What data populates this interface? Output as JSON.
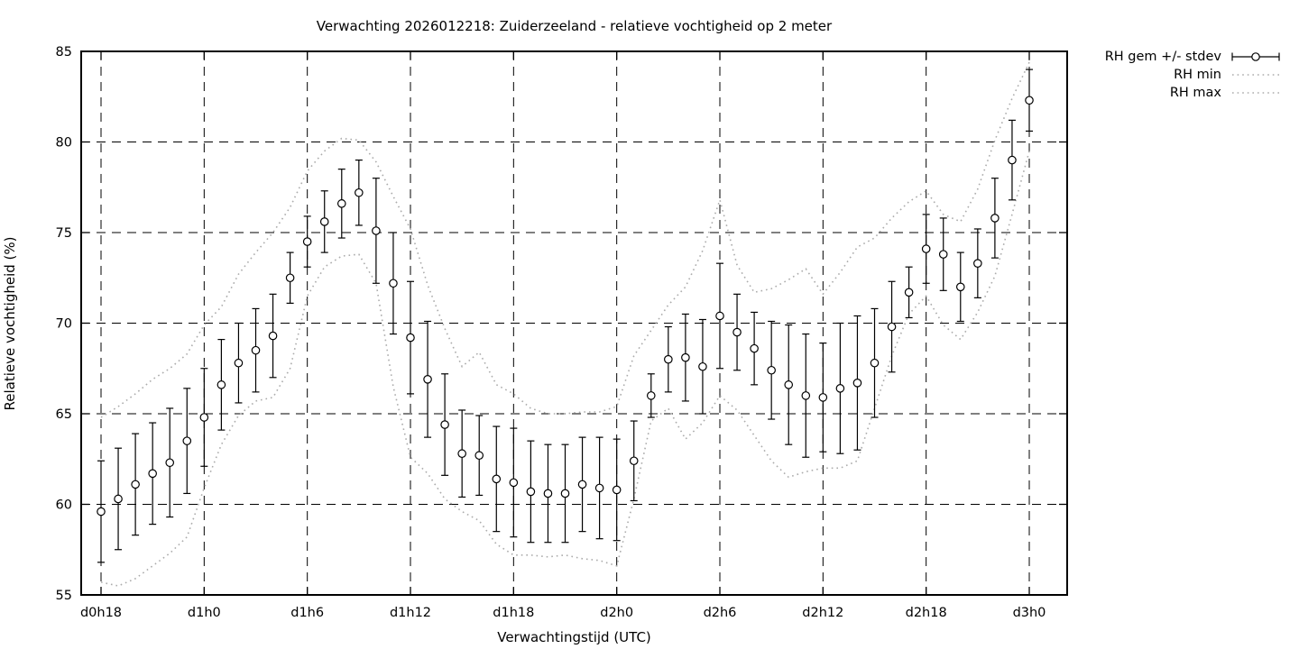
{
  "chart_data": {
    "type": "line-errorbar",
    "title": "Verwachting 2026012218: Zuiderzeeland - relatieve vochtigheid op 2 meter",
    "xlabel": "Verwachtingstijd (UTC)",
    "ylabel": "Relatieve vochtigheid (%)",
    "ylim": [
      55,
      85
    ],
    "yticks": [
      55,
      60,
      65,
      70,
      75,
      80,
      85
    ],
    "grid": "dashed both directions",
    "legend_position": "outside top right",
    "x_hours_span": 54,
    "xticks": [
      {
        "index": 0,
        "label": "d0h18"
      },
      {
        "index": 6,
        "label": "d1h0"
      },
      {
        "index": 12,
        "label": "d1h6"
      },
      {
        "index": 18,
        "label": "d1h12"
      },
      {
        "index": 24,
        "label": "d1h18"
      },
      {
        "index": 30,
        "label": "d2h0"
      },
      {
        "index": 36,
        "label": "d2h6"
      },
      {
        "index": 42,
        "label": "d2h12"
      },
      {
        "index": 48,
        "label": "d2h18"
      },
      {
        "index": 54,
        "label": "d3h0"
      }
    ],
    "legend": [
      {
        "label": "RH gem +/- stdev",
        "sample": "errorbar"
      },
      {
        "label": "RH min",
        "sample": "dotted"
      },
      {
        "label": "RH max",
        "sample": "dotted"
      }
    ],
    "colors": {
      "mean_series": "#000000",
      "minmax_series": "#ababab",
      "grid": "#000000",
      "background": "#ffffff",
      "text": "#000000"
    },
    "series": {
      "rh_mean": [
        59.6,
        60.3,
        61.1,
        61.7,
        62.3,
        63.5,
        64.8,
        66.6,
        67.8,
        68.5,
        69.3,
        72.5,
        74.5,
        75.6,
        76.6,
        77.2,
        75.1,
        72.2,
        69.2,
        66.9,
        64.4,
        62.8,
        62.7,
        61.4,
        61.2,
        60.7,
        60.6,
        60.6,
        61.1,
        60.9,
        60.8,
        62.4,
        66.0,
        68.0,
        68.1,
        67.6,
        70.4,
        69.5,
        68.6,
        67.4,
        66.6,
        66.0,
        65.9,
        66.4,
        66.7,
        67.8,
        69.8,
        71.7,
        74.1,
        73.8,
        72.0,
        73.3,
        75.8,
        79.0,
        82.3
      ],
      "rh_stdev": [
        2.8,
        2.8,
        2.8,
        2.8,
        3.0,
        2.9,
        2.7,
        2.5,
        2.2,
        2.3,
        2.3,
        1.4,
        1.4,
        1.7,
        1.9,
        1.8,
        2.9,
        2.8,
        3.1,
        3.2,
        2.8,
        2.4,
        2.2,
        2.9,
        3.0,
        2.8,
        2.7,
        2.7,
        2.6,
        2.8,
        2.8,
        2.2,
        1.2,
        1.8,
        2.4,
        2.6,
        2.9,
        2.1,
        2.0,
        2.7,
        3.3,
        3.4,
        3.0,
        3.6,
        3.7,
        3.0,
        2.5,
        1.4,
        1.9,
        2.0,
        1.9,
        1.9,
        2.2,
        2.2,
        1.7
      ],
      "rh_min": [
        55.7,
        55.5,
        55.9,
        56.6,
        57.3,
        58.2,
        60.9,
        63.3,
        64.9,
        65.7,
        65.9,
        67.5,
        71.5,
        73.1,
        73.7,
        73.8,
        72.2,
        66.5,
        62.6,
        61.7,
        60.3,
        59.6,
        59.1,
        57.8,
        57.2,
        57.2,
        57.1,
        57.2,
        57.0,
        56.9,
        56.6,
        60.3,
        64.6,
        65.3,
        63.6,
        64.5,
        66.0,
        65.2,
        63.8,
        62.4,
        61.5,
        61.8,
        62.0,
        62.0,
        62.4,
        65.3,
        68.2,
        70.5,
        71.5,
        69.9,
        69.1,
        70.6,
        72.6,
        76.0,
        79.5
      ],
      "rh_max": [
        64.8,
        65.4,
        66.1,
        66.9,
        67.5,
        68.3,
        69.9,
        70.9,
        72.7,
        73.9,
        75.0,
        76.4,
        78.4,
        79.5,
        80.2,
        80.1,
        78.9,
        77.0,
        75.2,
        72.1,
        69.7,
        67.6,
        68.4,
        66.6,
        66.1,
        65.3,
        65.0,
        65.0,
        65.1,
        65.1,
        65.4,
        68.2,
        69.6,
        71.0,
        72.0,
        74.0,
        76.8,
        73.2,
        71.7,
        71.9,
        72.4,
        73.0,
        71.6,
        72.8,
        74.2,
        74.7,
        75.8,
        76.7,
        77.3,
        76.0,
        75.6,
        77.4,
        80.1,
        82.4,
        84.4
      ]
    }
  }
}
